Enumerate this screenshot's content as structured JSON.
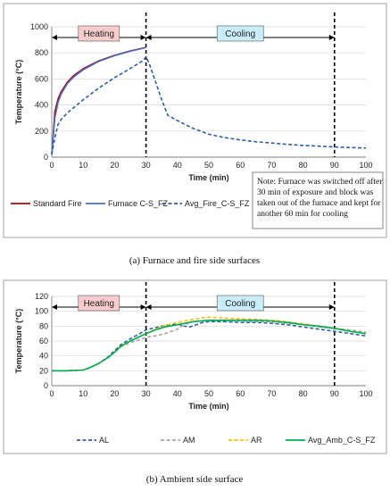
{
  "chart_data": [
    {
      "type": "line",
      "xlabel": "Time (min)",
      "ylabel": "Temperature (°C)",
      "xlim": [
        0,
        100
      ],
      "ylim": [
        0,
        1000
      ],
      "xticks": [
        "0",
        "10",
        "20",
        "30",
        "40",
        "50",
        "60",
        "70",
        "80",
        "90",
        "100"
      ],
      "yticks": [
        "0",
        "200",
        "400",
        "600",
        "800",
        "1000"
      ],
      "phases": [
        {
          "label": "Heating",
          "start": 0,
          "end": 30,
          "color": "#f8cccc"
        },
        {
          "label": "Cooling",
          "start": 30,
          "end": 90,
          "color": "#c9eef8"
        }
      ],
      "vlines": [
        30,
        90
      ],
      "note": [
        "Note: Furnace was switched off after",
        "30 min of exposure and block was",
        "taken out of the furnace and kept for",
        "another 60 min for cooling"
      ],
      "caption": "(a)  Furnace and fire side surfaces",
      "series": [
        {
          "name": "Standard Fire",
          "color": "#c00000",
          "style": "solid",
          "x": [
            0,
            1,
            2,
            3,
            5,
            7,
            10,
            15,
            20,
            25,
            30
          ],
          "y": [
            20,
            349,
            445,
            502,
            576,
            626,
            678,
            739,
            781,
            815,
            842
          ]
        },
        {
          "name": "Furnace C-S_FZ",
          "color": "#4472c4",
          "style": "solid",
          "x": [
            0,
            0.5,
            1,
            2,
            3,
            5,
            7,
            10,
            15,
            20,
            25,
            30
          ],
          "y": [
            20,
            170,
            300,
            420,
            485,
            565,
            615,
            670,
            735,
            778,
            812,
            840
          ]
        },
        {
          "name": "Avg_Fire_C-S_FZ",
          "color": "#2e5fa8",
          "style": "dashed",
          "x": [
            0,
            1,
            2,
            3,
            5,
            7,
            10,
            15,
            20,
            25,
            29,
            30,
            31,
            33,
            35,
            37,
            40,
            45,
            50,
            55,
            60,
            65,
            70,
            75,
            80,
            85,
            90,
            95,
            100
          ],
          "y": [
            20,
            150,
            250,
            290,
            340,
            380,
            440,
            530,
            610,
            680,
            740,
            770,
            720,
            580,
            440,
            320,
            280,
            220,
            175,
            150,
            132,
            118,
            108,
            98,
            90,
            84,
            78,
            73,
            70
          ]
        }
      ]
    },
    {
      "type": "line",
      "xlabel": "Time (min)",
      "ylabel": "Temperature (°C)",
      "xlim": [
        0,
        100
      ],
      "ylim": [
        0,
        120
      ],
      "xticks": [
        "0",
        "10",
        "20",
        "30",
        "40",
        "50",
        "60",
        "70",
        "80",
        "90",
        "100"
      ],
      "yticks": [
        "0",
        "20",
        "40",
        "60",
        "80",
        "100",
        "120"
      ],
      "phases": [
        {
          "label": "Heating",
          "start": 0,
          "end": 30,
          "color": "#f8cccc"
        },
        {
          "label": "Cooling",
          "start": 30,
          "end": 90,
          "color": "#c9eef8"
        }
      ],
      "vlines": [
        30,
        90
      ],
      "caption": "(b)  Ambient side surface",
      "series": [
        {
          "name": "AL",
          "color": "#2e5fa8",
          "style": "dashed",
          "x": [
            0,
            5,
            10,
            12,
            15,
            18,
            20,
            22,
            25,
            28,
            30,
            33,
            36,
            40,
            42,
            44,
            46,
            48,
            50,
            55,
            60,
            65,
            70,
            75,
            80,
            85,
            90,
            95,
            100
          ],
          "y": [
            20,
            20,
            21,
            24,
            30,
            39,
            47,
            55,
            63,
            70,
            75,
            78,
            81,
            83,
            80,
            79,
            82,
            85,
            86,
            86,
            85,
            85,
            84,
            82,
            79,
            76,
            73,
            70,
            67
          ]
        },
        {
          "name": "AM",
          "color": "#a6a6a6",
          "style": "dashed",
          "x": [
            0,
            5,
            10,
            12,
            15,
            18,
            20,
            22,
            25,
            28,
            30,
            33,
            36,
            40,
            42,
            45,
            48,
            50,
            55,
            60,
            65,
            70,
            75,
            80,
            85,
            90,
            95,
            100
          ],
          "y": [
            20,
            20,
            21,
            24,
            30,
            38,
            45,
            52,
            58,
            62,
            65,
            67,
            70,
            76,
            82,
            86,
            87,
            87,
            87,
            87,
            86,
            86,
            84,
            82,
            79,
            77,
            75,
            72
          ]
        },
        {
          "name": "AR",
          "color": "#ffc000",
          "style": "dashed",
          "x": [
            0,
            5,
            10,
            12,
            15,
            18,
            20,
            22,
            25,
            28,
            30,
            33,
            36,
            40,
            45,
            48,
            50,
            55,
            60,
            65,
            70,
            75,
            80,
            85,
            90,
            95,
            100
          ],
          "y": [
            20,
            20,
            21,
            24,
            30,
            38,
            45,
            52,
            60,
            66,
            70,
            76,
            81,
            85,
            89,
            91,
            92,
            91,
            90,
            89,
            88,
            86,
            83,
            80,
            77,
            73,
            70
          ]
        },
        {
          "name": "Avg_Amb_C-S_FZ",
          "color": "#00b050",
          "style": "solid",
          "x": [
            0,
            5,
            10,
            12,
            15,
            18,
            20,
            22,
            25,
            28,
            30,
            33,
            36,
            40,
            45,
            50,
            55,
            60,
            65,
            70,
            75,
            80,
            85,
            90,
            95,
            100
          ],
          "y": [
            20,
            20,
            21,
            24,
            30,
            38,
            45,
            53,
            60,
            66,
            70,
            75,
            79,
            82,
            86,
            88,
            88,
            88,
            88,
            87,
            85,
            82,
            80,
            77,
            73,
            70
          ]
        }
      ]
    }
  ]
}
